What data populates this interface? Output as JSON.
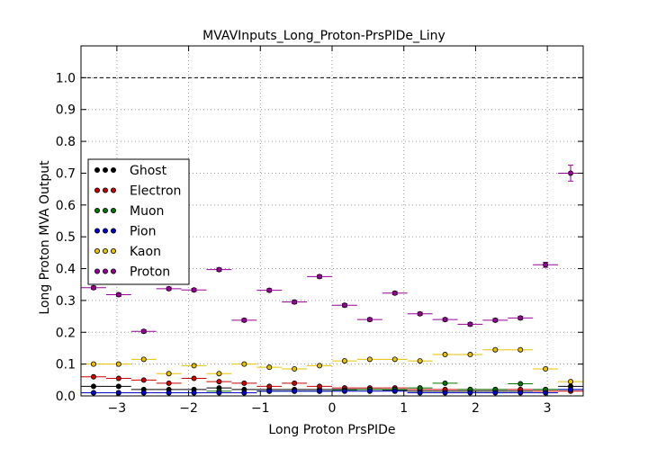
{
  "chart_data": {
    "type": "scatter",
    "title": "MVAVInputs_Long_Proton-PrsPIDe_Liny",
    "xlabel": "Long Proton PrsPIDe",
    "ylabel": "Long Proton MVA Output",
    "xlim": [
      -3.5,
      3.5
    ],
    "ylim": [
      0.0,
      1.1
    ],
    "xticks": [
      -3,
      -2,
      -1,
      0,
      1,
      2,
      3
    ],
    "yticks": [
      0.0,
      0.1,
      0.2,
      0.3,
      0.4,
      0.5,
      0.6,
      0.7,
      0.8,
      0.9,
      1.0
    ],
    "grid": true,
    "reference_line": 1.0,
    "legend_position": "center-left",
    "x": [
      -3.325,
      -2.975,
      -2.625,
      -2.275,
      -1.925,
      -1.575,
      -1.225,
      -0.875,
      -0.525,
      -0.175,
      0.175,
      0.525,
      0.875,
      1.225,
      1.575,
      1.925,
      2.275,
      2.625,
      2.975,
      3.325
    ],
    "x_halfwidth": 0.175,
    "series": [
      {
        "name": "Ghost",
        "color": "#000000",
        "values": [
          0.03,
          0.03,
          0.02,
          0.02,
          0.02,
          0.025,
          0.02,
          0.02,
          0.02,
          0.02,
          0.02,
          0.02,
          0.018,
          0.015,
          0.015,
          0.015,
          0.015,
          0.015,
          0.02,
          0.03
        ]
      },
      {
        "name": "Electron",
        "color": "#cc0000",
        "values": [
          0.06,
          0.055,
          0.05,
          0.04,
          0.055,
          0.045,
          0.04,
          0.03,
          0.04,
          0.03,
          0.025,
          0.025,
          0.025,
          0.02,
          0.02,
          0.02,
          0.02,
          0.02,
          0.015,
          0.015
        ]
      },
      {
        "name": "Muon",
        "color": "#007700",
        "values": [
          0.01,
          0.01,
          0.01,
          0.01,
          0.01,
          0.015,
          0.01,
          0.015,
          0.015,
          0.015,
          0.018,
          0.02,
          0.02,
          0.025,
          0.04,
          0.02,
          0.02,
          0.038,
          0.02,
          0.02
        ]
      },
      {
        "name": "Pion",
        "color": "#0000cc",
        "values": [
          0.01,
          0.01,
          0.01,
          0.01,
          0.01,
          0.01,
          0.01,
          0.015,
          0.015,
          0.015,
          0.015,
          0.015,
          0.015,
          0.01,
          0.01,
          0.01,
          0.01,
          0.01,
          0.01,
          0.02
        ]
      },
      {
        "name": "Kaon",
        "color": "#e6c200",
        "values": [
          0.1,
          0.1,
          0.115,
          0.07,
          0.095,
          0.07,
          0.1,
          0.09,
          0.085,
          0.095,
          0.11,
          0.115,
          0.115,
          0.11,
          0.13,
          0.13,
          0.145,
          0.145,
          0.085,
          0.045
        ]
      },
      {
        "name": "Proton",
        "color": "#990099",
        "values": [
          0.34,
          0.318,
          0.203,
          0.337,
          0.333,
          0.397,
          0.238,
          0.332,
          0.295,
          0.375,
          0.285,
          0.24,
          0.323,
          0.258,
          0.24,
          0.225,
          0.238,
          0.245,
          0.412,
          0.7
        ],
        "yerr": [
          0.005,
          0.005,
          0.005,
          0.005,
          0.005,
          0.005,
          0.005,
          0.005,
          0.005,
          0.005,
          0.005,
          0.005,
          0.005,
          0.005,
          0.005,
          0.005,
          0.005,
          0.005,
          0.008,
          0.025
        ]
      }
    ]
  }
}
